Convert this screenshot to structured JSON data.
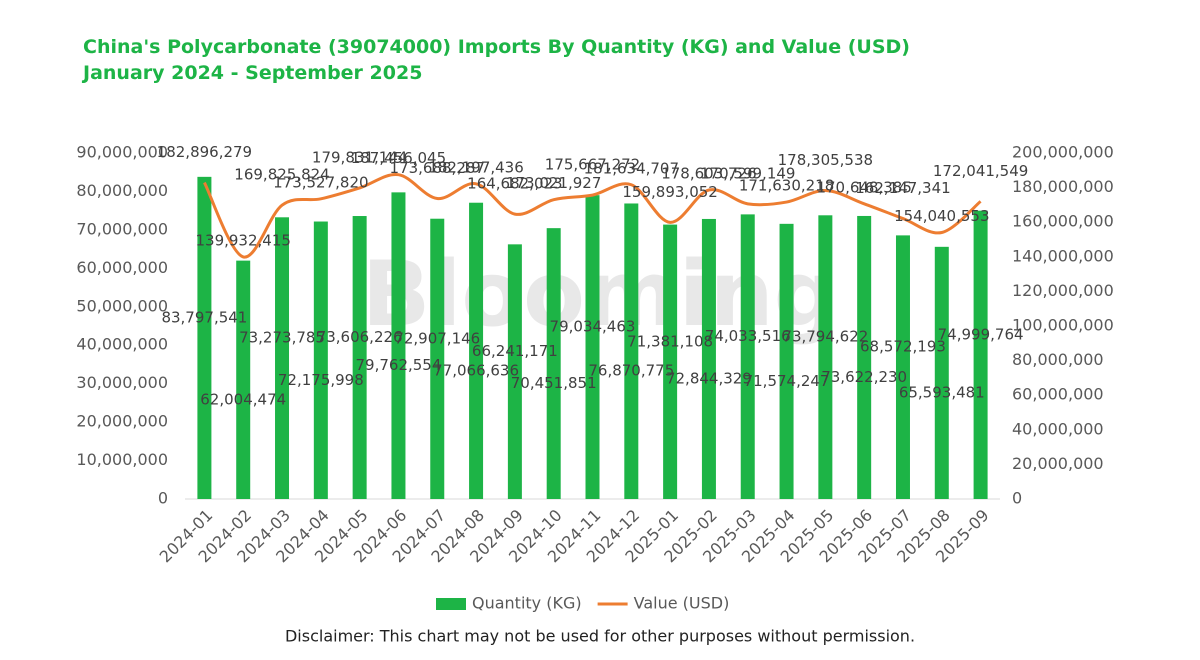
{
  "chart_data": {
    "type": "bar-line",
    "title": "China's Polycarbonate (39074000) Imports By Quantity (KG) and Value (USD)",
    "subtitle": "January 2024 - September 2025",
    "watermark": "Blooming",
    "footnote": "Disclaimer: This chart may not be used for other purposes without permission.",
    "categories": [
      "2024-01",
      "2024-02",
      "2024-03",
      "2024-04",
      "2024-05",
      "2024-06",
      "2024-07",
      "2024-08",
      "2024-09",
      "2024-10",
      "2024-11",
      "2024-12",
      "2025-01",
      "2025-02",
      "2025-03",
      "2025-04",
      "2025-05",
      "2025-06",
      "2025-07",
      "2025-08",
      "2025-09"
    ],
    "series": [
      {
        "name": "Quantity (KG)",
        "type": "bar",
        "axis": "y",
        "color": "#1db446",
        "values": [
          83797541,
          62004474,
          73273785,
          72175998,
          73606226,
          79762554,
          72907146,
          77066636,
          66241171,
          70451851,
          79034463,
          76870775,
          71381108,
          72844329,
          74033516,
          71574247,
          73794622,
          73622230,
          68572193,
          65593481,
          74999764
        ],
        "value_labels": [
          "83,797,541",
          "62,004,474",
          "73,273,785",
          "72,175,998",
          "73,606,226",
          "79,762,554",
          "72,907,146",
          "77,066,636",
          "66,241,171",
          "70,451,851",
          "79,034,463",
          "76,870,775",
          "71,381,108",
          "72,844,329",
          "74,033,516",
          "71,574,247",
          "73,794,622",
          "73,622,230",
          "68,572,193",
          "65,593,481",
          "74,999,764"
        ]
      },
      {
        "name": "Value (USD)",
        "type": "line",
        "axis": "y2",
        "color": "#ed7d31",
        "values": [
          182896279,
          139932415,
          169825824,
          173527820,
          179831144,
          187456045,
          173688287,
          182197436,
          164682023,
          173021927,
          175667272,
          181634707,
          159893052,
          178603726,
          170599149,
          171630218,
          178305538,
          170648385,
          162147341,
          154040553,
          172041549
        ],
        "value_labels": [
          "182,896,279",
          "139,932,415",
          "169,825,824",
          "173,527,820",
          "179,831,144",
          "187,456,045",
          "173,688,287",
          "182,197,436",
          "164,682,023",
          "173,021,927",
          "175,667,272",
          "181,634,707",
          "159,893,052",
          "178,603,726",
          "170,599,149",
          "171,630,218",
          "178,305,538",
          "170,648,385",
          "162,147,341",
          "154,040,553",
          "172,041,549"
        ]
      }
    ],
    "ylim": [
      0,
      90000000
    ],
    "yticks": [
      {
        "value": 0,
        "label": "0"
      },
      {
        "value": 10000000,
        "label": "10,000,000"
      },
      {
        "value": 20000000,
        "label": "20,000,000"
      },
      {
        "value": 30000000,
        "label": "30,000,000"
      },
      {
        "value": 40000000,
        "label": "40,000,000"
      },
      {
        "value": 50000000,
        "label": "50,000,000"
      },
      {
        "value": 60000000,
        "label": "60,000,000"
      },
      {
        "value": 70000000,
        "label": "70,000,000"
      },
      {
        "value": 80000000,
        "label": "80,000,000"
      },
      {
        "value": 90000000,
        "label": "90,000,000"
      }
    ],
    "y2lim": [
      0,
      200000000
    ],
    "y2ticks": [
      {
        "value": 0,
        "label": "0"
      },
      {
        "value": 20000000,
        "label": "20,000,000"
      },
      {
        "value": 40000000,
        "label": "40,000,000"
      },
      {
        "value": 60000000,
        "label": "60,000,000"
      },
      {
        "value": 80000000,
        "label": "80,000,000"
      },
      {
        "value": 100000000,
        "label": "100,000,000"
      },
      {
        "value": 120000000,
        "label": "120,000,000"
      },
      {
        "value": 140000000,
        "label": "140,000,000"
      },
      {
        "value": 160000000,
        "label": "160,000,000"
      },
      {
        "value": 180000000,
        "label": "180,000,000"
      },
      {
        "value": 200000000,
        "label": "200,000,000"
      }
    ],
    "grid": false,
    "legend": "bottom"
  }
}
